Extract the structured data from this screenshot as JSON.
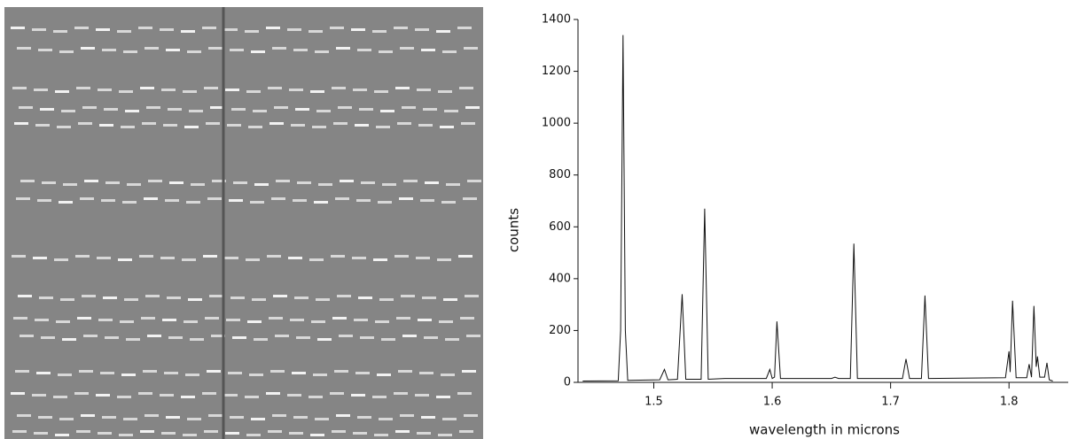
{
  "chart_data": {
    "type": "line",
    "xlabel": "wavelength in microns",
    "ylabel": "counts",
    "x": [
      1.44,
      1.47,
      1.472,
      1.474,
      1.476,
      1.478,
      1.505,
      1.509,
      1.512,
      1.52,
      1.524,
      1.527,
      1.54,
      1.543,
      1.546,
      1.56,
      1.595,
      1.598,
      1.6,
      1.602,
      1.604,
      1.607,
      1.65,
      1.653,
      1.656,
      1.666,
      1.669,
      1.672,
      1.71,
      1.713,
      1.716,
      1.726,
      1.729,
      1.732,
      1.797,
      1.8,
      1.801,
      1.803,
      1.806,
      1.815,
      1.817,
      1.819,
      1.821,
      1.823,
      1.824,
      1.826,
      1.83,
      1.832,
      1.834,
      1.837
    ],
    "values": [
      5,
      6,
      200,
      1340,
      200,
      8,
      10,
      50,
      10,
      12,
      340,
      12,
      12,
      670,
      12,
      15,
      15,
      50,
      15,
      20,
      235,
      15,
      15,
      20,
      15,
      15,
      535,
      15,
      15,
      90,
      15,
      15,
      335,
      15,
      18,
      120,
      40,
      315,
      18,
      18,
      70,
      20,
      295,
      60,
      100,
      20,
      20,
      75,
      10,
      5
    ],
    "color": "#111111",
    "xlim": [
      1.436,
      1.85
    ],
    "xticks": [
      1.5,
      1.6,
      1.7,
      1.8
    ],
    "ylim": [
      0,
      1400
    ],
    "yticks": [
      0,
      200,
      400,
      600,
      800,
      1000,
      1200,
      1400
    ]
  }
}
